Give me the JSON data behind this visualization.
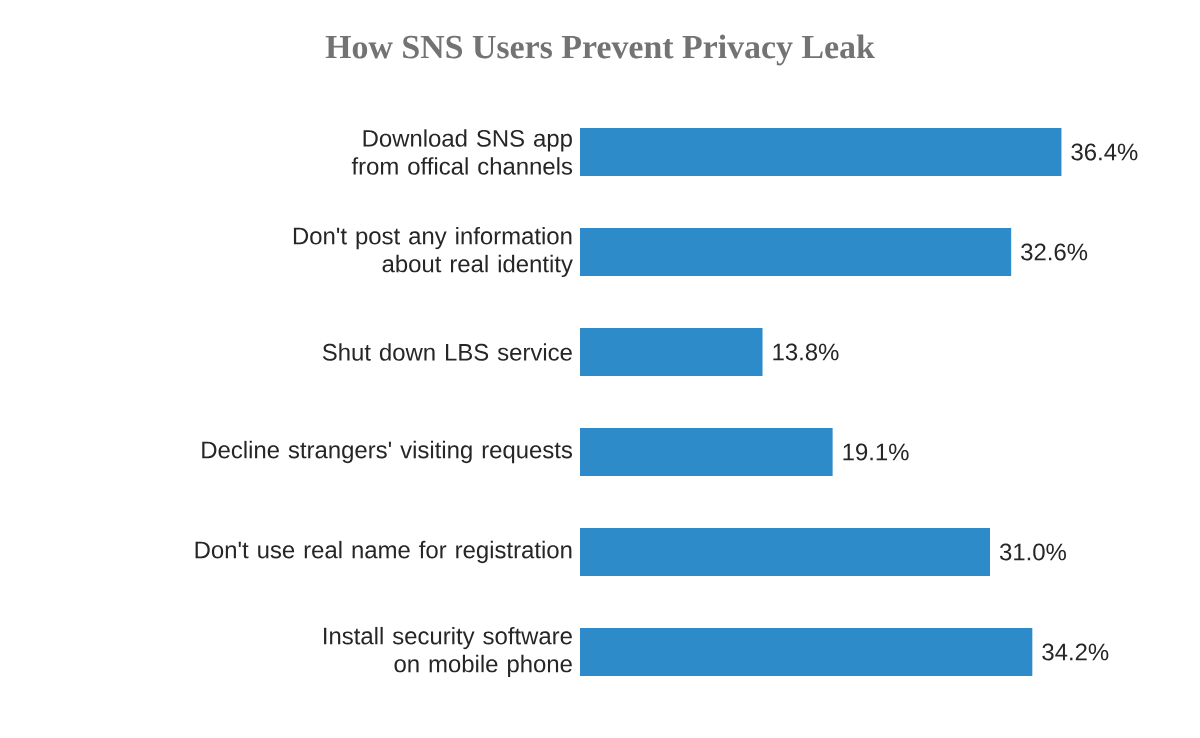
{
  "chart_data": {
    "type": "bar",
    "orientation": "horizontal",
    "title": "How SNS Users Prevent Privacy Leak",
    "categories": [
      "Download SNS app from offical channels",
      "Don't post any information about real identity",
      "Shut down LBS service",
      "Decline strangers' visiting requests",
      "Don't use real name for registration",
      "Install security software on mobile phone"
    ],
    "values": [
      36.4,
      32.6,
      13.8,
      19.1,
      31.0,
      34.2
    ],
    "value_labels": [
      "36.4%",
      "32.6%",
      "13.8%",
      "19.1%",
      "31.0%",
      "34.2%"
    ],
    "color": "#2e8bc9"
  }
}
